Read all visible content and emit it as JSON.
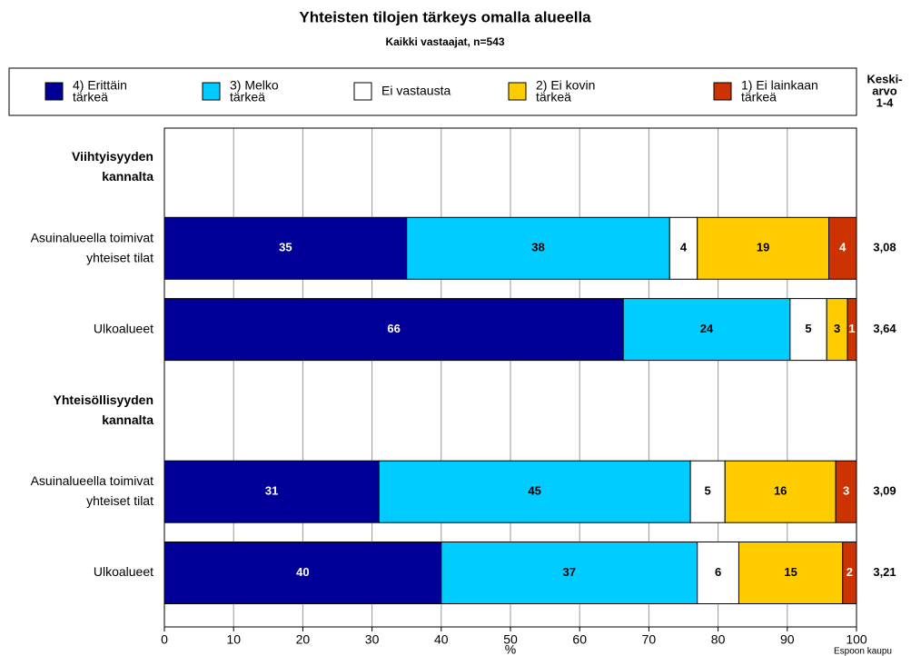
{
  "chart_data": {
    "type": "stacked-barh",
    "title": "Yhteisten tilojen tärkeys omalla alueella",
    "subtitle": "Kaikki vastaajat, n=543",
    "xlabel": "%",
    "source": "Espoon kaupu",
    "categories": [
      "Viihtyisyyden\nkannalta",
      "Asuinalueella toimivat\nyhteiset tilat",
      "Ulkoalueet",
      "Yhteisöllisyyden\nkannalta",
      "Asuinalueella toimivat\nyhteiset tilat",
      "Ulkoalueet"
    ],
    "group_headers": [
      true,
      false,
      false,
      true,
      false,
      false
    ],
    "series": [
      {
        "name": "4) Erittäin\ntärkeä",
        "color": "#000099",
        "label_color": "#ffffff",
        "values": [
          null,
          35,
          66.3,
          null,
          31,
          40
        ],
        "value_labels": [
          null,
          "35",
          "66",
          null,
          "31",
          "40"
        ]
      },
      {
        "name": "3) Melko\ntärkeä",
        "color": "#00ccff",
        "label_color": "#000000",
        "values": [
          null,
          38,
          24.1,
          null,
          45,
          37
        ],
        "value_labels": [
          null,
          "38",
          "24",
          null,
          "45",
          "37"
        ]
      },
      {
        "name": "Ei vastausta",
        "color": "#ffffff",
        "label_color": "#000000",
        "values": [
          null,
          4,
          5.3,
          null,
          5,
          6
        ],
        "value_labels": [
          null,
          "4",
          "5",
          null,
          "5",
          "6"
        ]
      },
      {
        "name": "2) Ei kovin\ntärkeä",
        "color": "#ffcc00",
        "label_color": "#000000",
        "values": [
          null,
          19,
          3.0,
          null,
          16,
          15
        ],
        "value_labels": [
          null,
          "19",
          "3",
          null,
          "16",
          "15"
        ]
      },
      {
        "name": "1) Ei lainkaan\ntärkeä",
        "color": "#cc3300",
        "label_color": "#ffffff",
        "values": [
          null,
          4,
          1.3,
          null,
          3,
          2
        ],
        "value_labels": [
          null,
          "4",
          "1",
          null,
          "3",
          "2"
        ]
      }
    ],
    "means_title": [
      "Keski-",
      "arvo",
      "1-4"
    ],
    "means": [
      null,
      "3,08",
      "3,64",
      null,
      "3,09",
      "3,21"
    ],
    "xlim": [
      0,
      100
    ],
    "xticks": [
      0,
      10,
      20,
      30,
      40,
      50,
      60,
      70,
      80,
      90,
      100
    ],
    "grid": true
  }
}
